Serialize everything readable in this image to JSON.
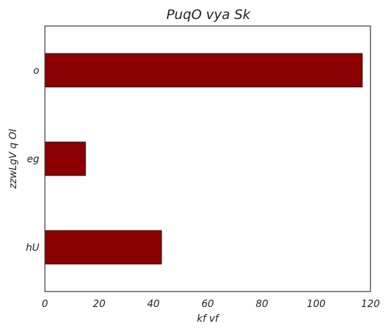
{
  "chart_data": {
    "type": "bar",
    "orientation": "horizontal",
    "title": "PuqO vya Sk",
    "xlabel": "kf  vf",
    "ylabel": "zzwLgV  q  OI",
    "categories": [
      "o",
      "eg",
      "hU"
    ],
    "values": [
      117,
      15,
      43
    ],
    "xlim": [
      0,
      120
    ],
    "xticks": [
      0,
      20,
      40,
      60,
      80,
      100,
      120
    ],
    "grid": false,
    "bar_color": "#8b0000",
    "edge_color": "#111111"
  }
}
